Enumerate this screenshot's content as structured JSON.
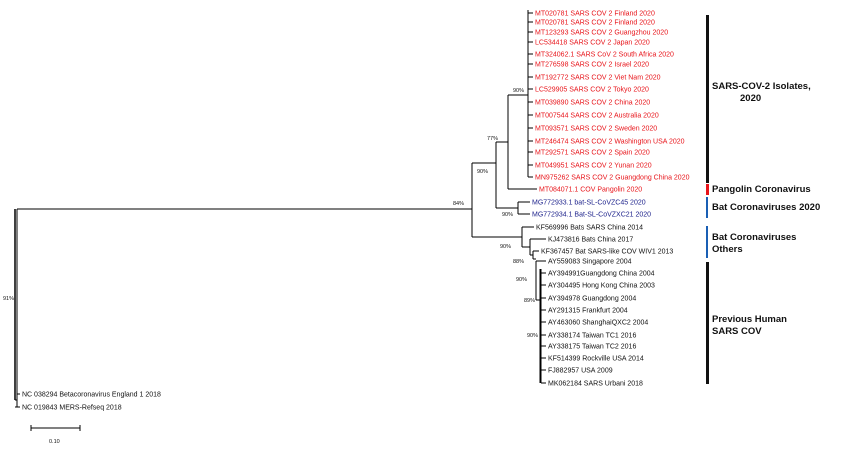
{
  "leaves": [
    {
      "id": "l0",
      "label": "MT020781 SARS COV 2 Finland 2020",
      "color": "red"
    },
    {
      "id": "l1",
      "label": "MT020781 SARS COV 2 Finland 2020",
      "color": "red"
    },
    {
      "id": "l2",
      "label": "MT123293 SARS COV 2 Guangzhou 2020",
      "color": "red"
    },
    {
      "id": "l3",
      "label": "LC534418 SARS COV 2 Japan 2020",
      "color": "red"
    },
    {
      "id": "l4",
      "label": "MT324062.1 SARS CoV 2 South Africa 2020",
      "color": "red"
    },
    {
      "id": "l5",
      "label": "MT276598 SARS COV 2 Israel 2020",
      "color": "red"
    },
    {
      "id": "l6",
      "label": "MT192772 SARS COV 2 Viet Nam 2020",
      "color": "red"
    },
    {
      "id": "l7",
      "label": "LC529905 SARS COV 2 Tokyo 2020",
      "color": "red"
    },
    {
      "id": "l8",
      "label": "MT039890 SARS COV 2 China 2020",
      "color": "red"
    },
    {
      "id": "l9",
      "label": "MT007544 SARS COV 2 Australia 2020",
      "color": "red"
    },
    {
      "id": "l10",
      "label": "MT093571 SARS COV 2 Sweden 2020",
      "color": "red"
    },
    {
      "id": "l11",
      "label": "MT246474 SARS COV 2 Washington USA 2020",
      "color": "red"
    },
    {
      "id": "l12",
      "label": "MT292571 SARS COV 2 Spain 2020",
      "color": "red"
    },
    {
      "id": "l13",
      "label": "MT049951 SARS COV 2 Yunan 2020",
      "color": "red"
    },
    {
      "id": "l14",
      "label": "MN975262 SARS COV 2 Guangdong China 2020",
      "color": "red"
    },
    {
      "id": "l15",
      "label": "MT084071.1 COV Pangolin 2020",
      "color": "red"
    },
    {
      "id": "l16",
      "label": "MG772933.1 bat-SL-CoVZC45 2020",
      "color": "blue"
    },
    {
      "id": "l17",
      "label": "MG772934.1 Bat-SL-CoVZXC21 2020",
      "color": "blue"
    },
    {
      "id": "l18",
      "label": "KF569996 Bats SARS China 2014",
      "color": "black"
    },
    {
      "id": "l19",
      "label": "KJ473816 Bats China 2017",
      "color": "black"
    },
    {
      "id": "l20",
      "label": "KF367457 Bat SARS-like COV WIV1 2013",
      "color": "black"
    },
    {
      "id": "l21",
      "label": "AY559083 Singapore 2004",
      "color": "black"
    },
    {
      "id": "l22",
      "label": "AY394991Guangdong China 2004",
      "color": "black"
    },
    {
      "id": "l23",
      "label": "AY304495 Hong Kong China 2003",
      "color": "black"
    },
    {
      "id": "l24",
      "label": "AY394978 Guangdong 2004",
      "color": "black"
    },
    {
      "id": "l25",
      "label": "AY291315 Frankfurt 2004",
      "color": "black"
    },
    {
      "id": "l26",
      "label": "AY463060 ShanghaiQXC2 2004",
      "color": "black"
    },
    {
      "id": "l27",
      "label": "AY338174 Taiwan TC1 2016",
      "color": "black"
    },
    {
      "id": "l28",
      "label": "AY338175 Taiwan TC2 2016",
      "color": "black"
    },
    {
      "id": "l29",
      "label": "KF514399 Rockville USA 2014",
      "color": "black"
    },
    {
      "id": "l30",
      "label": "FJ882957 USA 2009",
      "color": "black"
    },
    {
      "id": "l31",
      "label": "MK062184 SARS Urbani 2018",
      "color": "black"
    },
    {
      "id": "l32",
      "label": "NC 038294 Betacoronavirus England 1 2018",
      "color": "black"
    },
    {
      "id": "l33",
      "label": "NC 019843 MERS-Refseq 2018",
      "color": "black"
    }
  ],
  "bootstrap": [
    {
      "id": "b1",
      "value": "90%"
    },
    {
      "id": "b2",
      "value": "77%"
    },
    {
      "id": "b3",
      "value": "90%"
    },
    {
      "id": "b4",
      "value": "84%"
    },
    {
      "id": "b5",
      "value": "90%"
    },
    {
      "id": "b6",
      "value": "90%"
    },
    {
      "id": "b7",
      "value": "88%"
    },
    {
      "id": "b8",
      "value": "90%"
    },
    {
      "id": "b9",
      "value": "89%"
    },
    {
      "id": "b10",
      "value": "90%"
    },
    {
      "id": "b11",
      "value": "91%"
    }
  ],
  "groups": [
    {
      "id": "g1",
      "lines": [
        "SARS-COV-2 Isolates,",
        "2020"
      ],
      "bar_color": "#111111"
    },
    {
      "id": "g2",
      "lines": [
        "Pangolin Coronavirus"
      ],
      "bar_color": "#e8141a"
    },
    {
      "id": "g3",
      "lines": [
        "Bat Coronaviruses 2020"
      ],
      "bar_color": "#1a5fb4"
    },
    {
      "id": "g4",
      "lines": [
        "Bat Coronaviruses",
        "Others"
      ],
      "bar_color": "#1a5fb4"
    },
    {
      "id": "g5",
      "lines": [
        "Previous Human",
        "SARS COV"
      ],
      "bar_color": "#111111"
    }
  ],
  "scale": {
    "label": "0.10"
  },
  "colors": {
    "red": "#e8141a",
    "blue": "#1a1f8a",
    "black": "#111111",
    "branch": "#000000"
  }
}
